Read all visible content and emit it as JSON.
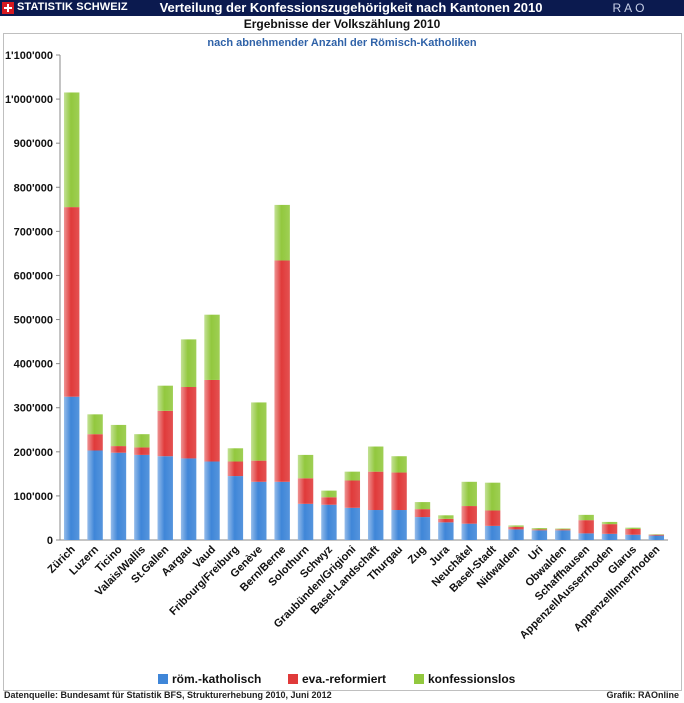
{
  "header": {
    "brand": "STATISTIK SCHWEIZ",
    "title": "Verteilung der Konfessionszugehörigkeit nach Kantonen 2010",
    "right_label": "RAO"
  },
  "footer": {
    "source": "Datenquelle: Bundesamt für Statistik BFS, Strukturerhebung 2010, Juni 2012",
    "credit": "Grafik: RAOnline"
  },
  "chart_data": {
    "type": "bar",
    "stacked": true,
    "title": "Ergebnisse der Volkszählung 2010",
    "subtitle": "nach abnehmender Anzahl der Römisch-Katholiken",
    "ylim": [
      0,
      1100000
    ],
    "yticks": [
      0,
      100000,
      200000,
      300000,
      400000,
      500000,
      600000,
      700000,
      800000,
      900000,
      1000000,
      1100000
    ],
    "ytick_labels": [
      "0",
      "100'000",
      "200'000",
      "300'000",
      "400'000",
      "500'000",
      "600'000",
      "700'000",
      "800'000",
      "900'000",
      "1'000'000",
      "1'100'000"
    ],
    "grid": false,
    "legend_position": "bottom",
    "categories": [
      "Zürich",
      "Luzern",
      "Ticino",
      "Valais/Wallis",
      "St.Gallen",
      "Aargau",
      "Vaud",
      "Fribourg/Freiburg",
      "Genève",
      "Bern/Berne",
      "Solothurn",
      "Schwyz",
      "Graubünden/Grigioni",
      "Basel-Landschaft",
      "Thurgau",
      "Zug",
      "Jura",
      "Neuchâtel",
      "Basel-Stadt",
      "Nidwalden",
      "Uri",
      "Obwalden",
      "Schaffhausen",
      "AppenzellAusserrhoden",
      "Glarus",
      "AppenzellInnerrhoden"
    ],
    "series": [
      {
        "name": "röm.-katholisch",
        "color": "#3f86d8",
        "values": [
          325000,
          203000,
          198000,
          193000,
          190000,
          185000,
          178000,
          145000,
          132000,
          132000,
          82000,
          80000,
          73000,
          68000,
          68000,
          52000,
          40000,
          37000,
          32000,
          24000,
          22000,
          22000,
          15000,
          14000,
          12000,
          10000
        ]
      },
      {
        "name": "eva.-reformiert",
        "color": "#e03a3a",
        "values": [
          430000,
          37000,
          15000,
          17000,
          103000,
          162000,
          185000,
          33000,
          48000,
          502000,
          58000,
          17000,
          62000,
          87000,
          85000,
          18000,
          8000,
          40000,
          35000,
          6000,
          2000,
          2000,
          30000,
          22000,
          13000,
          2000
        ]
      },
      {
        "name": "konfessionslos",
        "color": "#92c83e",
        "values": [
          260000,
          45000,
          48000,
          30000,
          57000,
          108000,
          148000,
          30000,
          132000,
          126000,
          53000,
          15000,
          20000,
          57000,
          37000,
          16000,
          8000,
          55000,
          63000,
          3000,
          3000,
          2000,
          12000,
          5000,
          3000,
          1000
        ]
      }
    ]
  }
}
